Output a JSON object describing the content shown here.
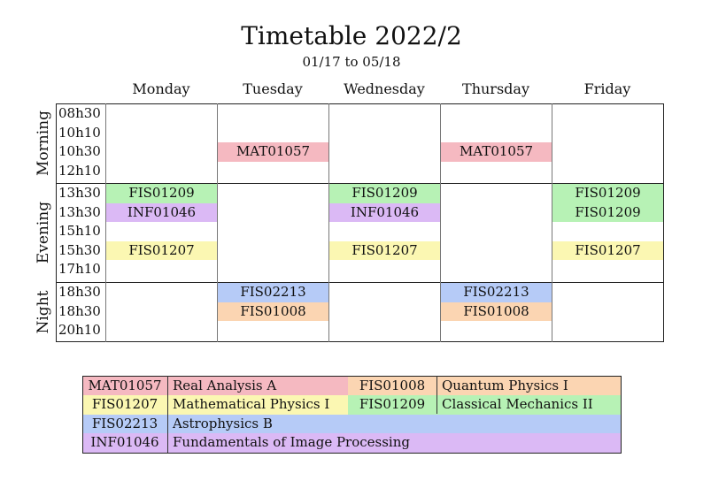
{
  "title": "Timetable 2022/2",
  "subtitle": "01/17 to 05/18",
  "days": [
    "Monday",
    "Tuesday",
    "Wednesday",
    "Thursday",
    "Friday"
  ],
  "sections": [
    {
      "name": "Morning",
      "times": [
        "08h30",
        "10h10",
        "10h30",
        "12h10"
      ]
    },
    {
      "name": "Evening",
      "times": [
        "13h30",
        "13h30",
        "15h10",
        "15h30",
        "17h10"
      ]
    },
    {
      "name": "Night",
      "times": [
        "18h30",
        "18h30",
        "20h10"
      ]
    }
  ],
  "colors": {
    "MAT01057": "#f5b9c1",
    "FIS01008": "#fbd5b2",
    "FIS01207": "#fbf7b2",
    "FIS01209": "#b7f2b5",
    "FIS02213": "#b6cbf7",
    "INF01046": "#dbb9f5"
  },
  "schedule": [
    {
      "day": 0,
      "section": 1,
      "slot": 0,
      "code": "FIS01209"
    },
    {
      "day": 0,
      "section": 1,
      "slot": 1,
      "code": "INF01046"
    },
    {
      "day": 0,
      "section": 1,
      "slot": 3,
      "code": "FIS01207"
    },
    {
      "day": 1,
      "section": 0,
      "slot": 2,
      "code": "MAT01057"
    },
    {
      "day": 1,
      "section": 2,
      "slot": 0,
      "code": "FIS02213"
    },
    {
      "day": 1,
      "section": 2,
      "slot": 1,
      "code": "FIS01008"
    },
    {
      "day": 2,
      "section": 1,
      "slot": 0,
      "code": "FIS01209"
    },
    {
      "day": 2,
      "section": 1,
      "slot": 1,
      "code": "INF01046"
    },
    {
      "day": 2,
      "section": 1,
      "slot": 3,
      "code": "FIS01207"
    },
    {
      "day": 3,
      "section": 0,
      "slot": 2,
      "code": "MAT01057"
    },
    {
      "day": 3,
      "section": 2,
      "slot": 0,
      "code": "FIS02213"
    },
    {
      "day": 3,
      "section": 2,
      "slot": 1,
      "code": "FIS01008"
    },
    {
      "day": 4,
      "section": 1,
      "slot": 0,
      "code": "FIS01209"
    },
    {
      "day": 4,
      "section": 1,
      "slot": 1,
      "code": "FIS01209"
    },
    {
      "day": 4,
      "section": 1,
      "slot": 3,
      "code": "FIS01207"
    }
  ],
  "legend": [
    [
      {
        "code": "MAT01057",
        "name": "Real Analysis A"
      },
      {
        "code": "FIS01008",
        "name": "Quantum Physics I"
      }
    ],
    [
      {
        "code": "FIS01207",
        "name": "Mathematical Physics I"
      },
      {
        "code": "FIS01209",
        "name": "Classical Mechanics II"
      }
    ],
    [
      {
        "code": "FIS02213",
        "name": "Astrophysics B"
      }
    ],
    [
      {
        "code": "INF01046",
        "name": "Fundamentals of Image Processing"
      }
    ]
  ]
}
